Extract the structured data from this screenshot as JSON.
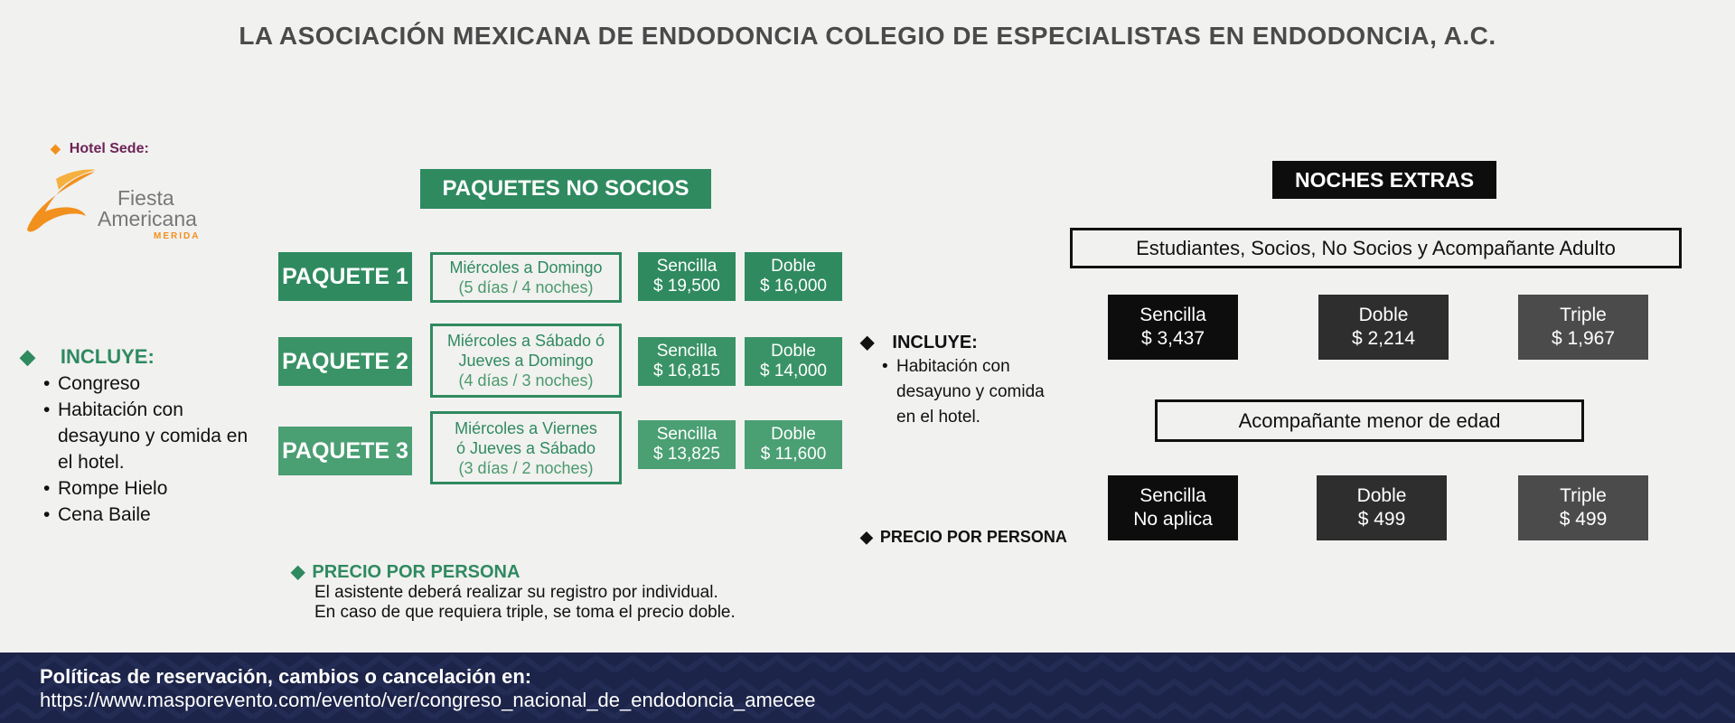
{
  "header": {
    "title": "LA  ASOCIACIÓN MEXICANA DE ENDODONCIA COLEGIO DE ESPECIALISTAS EN ENDODONCIA, A.C."
  },
  "hotel": {
    "label": "Hotel Sede:",
    "logo_line1": "Fiesta",
    "logo_line2": "Americana",
    "logo_sub": "MERIDA"
  },
  "left_includes": {
    "heading": "INCLUYE:",
    "items": [
      "Congreso",
      "Habitación con desayuno y comida en el hotel.",
      "Rompe Hielo",
      "Cena Baile"
    ]
  },
  "no_socios": {
    "banner": "PAQUETES NO SOCIOS",
    "packages": [
      {
        "label": "PAQUETE 1",
        "desc_1": "Miércoles a Domingo",
        "desc_2": "(5 días / 4 noches)",
        "desc_3": "",
        "sencilla_label": "Sencilla",
        "sencilla_price": "$ 19,500",
        "doble_label": "Doble",
        "doble_price": "$ 16,000"
      },
      {
        "label": "PAQUETE 2",
        "desc_1": "Miércoles a Sábado ó",
        "desc_2": "Jueves a Domingo",
        "desc_3": "(4 días / 3 noches)",
        "sencilla_label": "Sencilla",
        "sencilla_price": "$ 16,815",
        "doble_label": "Doble",
        "doble_price": "$ 14,000"
      },
      {
        "label": "PAQUETE 3",
        "desc_1": "Miércoles a Viernes",
        "desc_2": "ó Jueves a Sábado",
        "desc_3": "(3 días / 2 noches)",
        "sencilla_label": "Sencilla",
        "sencilla_price": "$ 13,825",
        "doble_label": "Doble",
        "doble_price": "$ 11,600"
      }
    ],
    "note_heading": "PRECIO POR PERSONA",
    "note_line1": "El asistente deberá realizar su registro por individual.",
    "note_line2": "En caso de que requiera triple, se toma el precio doble."
  },
  "middle_includes": {
    "heading": "INCLUYE:",
    "items": [
      "Habitación con",
      "desayuno y comida",
      "en el hotel."
    ],
    "price_note": "PRECIO POR PERSONA"
  },
  "noches_extras": {
    "banner": "NOCHES EXTRAS",
    "group1_title": "Estudiantes, Socios, No Socios y Acompañante Adulto",
    "group1": [
      {
        "label": "Sencilla",
        "price": "$ 3,437"
      },
      {
        "label": "Doble",
        "price": "$ 2,214"
      },
      {
        "label": "Triple",
        "price": "$ 1,967"
      }
    ],
    "group2_title": "Acompañante menor de edad",
    "group2": [
      {
        "label": "Sencilla",
        "price": "No aplica"
      },
      {
        "label": "Doble",
        "price": "$ 499"
      },
      {
        "label": "Triple",
        "price": "$ 499"
      }
    ]
  },
  "footer": {
    "line1": "Políticas de reservación, cambios o cancelación en:",
    "link": "https://www.masporevento.com/evento/ver/congreso_nacional_de_endodoncia_amecee"
  },
  "colors": {
    "green": "#2f8a5f",
    "green_light": "#4a9a6a",
    "navy": "#1c2449",
    "orange": "#f2901e",
    "purple": "#6d2456"
  },
  "icons": [
    "diamond-bullet-icon",
    "fiesta-americana-logo"
  ]
}
